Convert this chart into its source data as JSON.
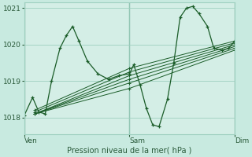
{
  "xlabel": "Pression niveau de la mer( hPa )",
  "bg_color": "#c8eae0",
  "plot_bg_color": "#d4eee6",
  "grid_color": "#9ecfbf",
  "line_color": "#1a5c28",
  "ylim": [
    1017.55,
    1021.15
  ],
  "yticks": [
    1018,
    1019,
    1020,
    1021
  ],
  "xlim": [
    0,
    1.0
  ],
  "xtick_positions": [
    0.0,
    0.5,
    1.0
  ],
  "xtick_labels": [
    "Ven",
    "Sam",
    "Dim"
  ],
  "main_series": [
    0.0,
    1018.05,
    0.04,
    1018.55,
    0.07,
    1018.15,
    0.1,
    1018.1,
    0.13,
    1019.0,
    0.17,
    1019.9,
    0.2,
    1020.25,
    0.23,
    1020.5,
    0.26,
    1020.1,
    0.3,
    1019.55,
    0.35,
    1019.2,
    0.4,
    1019.05,
    0.45,
    1019.15,
    0.5,
    1019.2,
    0.52,
    1019.45,
    0.55,
    1018.9,
    0.58,
    1018.25,
    0.61,
    1017.8,
    0.64,
    1017.75,
    0.68,
    1018.5,
    0.71,
    1019.5,
    0.74,
    1020.75,
    0.77,
    1021.0,
    0.8,
    1021.05,
    0.83,
    1020.85,
    0.87,
    1020.5,
    0.9,
    1019.9,
    0.94,
    1019.85,
    0.97,
    1019.9,
    1.0,
    1020.1
  ],
  "fan_series": [
    [
      0.05,
      1018.1,
      0.5,
      1018.8,
      1.0,
      1019.85
    ],
    [
      0.05,
      1018.1,
      0.5,
      1018.95,
      1.0,
      1019.9
    ],
    [
      0.05,
      1018.1,
      0.5,
      1019.05,
      1.0,
      1019.95
    ],
    [
      0.05,
      1018.1,
      0.5,
      1019.15,
      1.0,
      1020.0
    ],
    [
      0.05,
      1018.15,
      0.5,
      1019.25,
      1.0,
      1020.05
    ],
    [
      0.05,
      1018.2,
      0.5,
      1019.35,
      1.0,
      1020.1
    ]
  ]
}
